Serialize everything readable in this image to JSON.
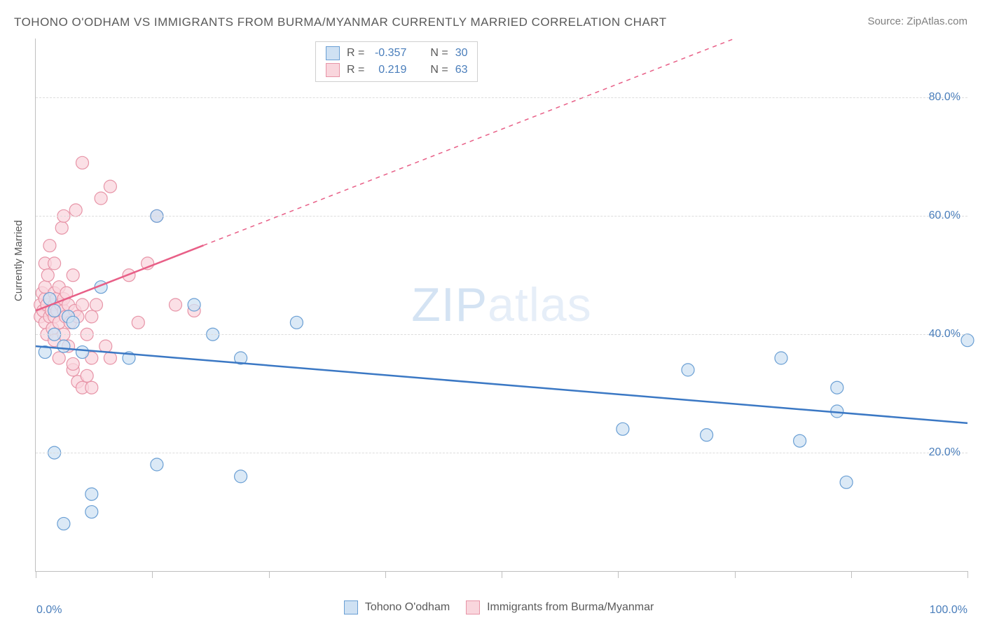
{
  "title": "TOHONO O'ODHAM VS IMMIGRANTS FROM BURMA/MYANMAR CURRENTLY MARRIED CORRELATION CHART",
  "source": "Source: ZipAtlas.com",
  "ylabel": "Currently Married",
  "watermark_bold": "ZIP",
  "watermark_thin": "atlas",
  "chart": {
    "type": "scatter",
    "xlim": [
      0,
      100
    ],
    "ylim": [
      0,
      90
    ],
    "x_axis_min_label": "0.0%",
    "x_axis_max_label": "100.0%",
    "y_ticks": [
      20,
      40,
      60,
      80
    ],
    "y_tick_labels": [
      "20.0%",
      "40.0%",
      "60.0%",
      "80.0%"
    ],
    "x_tick_positions": [
      0,
      12.5,
      25,
      37.5,
      50,
      62.5,
      75,
      87.5,
      100
    ],
    "grid_color": "#dcdcdc",
    "background_color": "#ffffff",
    "axis_color": "#bfbfbf",
    "tick_label_color": "#4a7ebb"
  },
  "series": {
    "blue": {
      "label": "Tohono O'odham",
      "point_fill": "#cfe1f3",
      "point_stroke": "#6a9fd4",
      "line_color": "#3b78c4",
      "marker_radius": 9,
      "R_value": "-0.357",
      "N_value": "30",
      "trend": {
        "x1": 0,
        "y1": 38,
        "x2": 100,
        "y2": 25,
        "dashed_from_x": null
      },
      "points": [
        [
          1,
          37
        ],
        [
          1.5,
          46
        ],
        [
          2,
          40
        ],
        [
          2,
          44
        ],
        [
          3,
          38
        ],
        [
          3.5,
          43
        ],
        [
          4,
          42
        ],
        [
          2,
          20
        ],
        [
          3,
          8
        ],
        [
          5,
          37
        ],
        [
          6,
          10
        ],
        [
          6,
          13
        ],
        [
          7,
          48
        ],
        [
          10,
          36
        ],
        [
          13,
          60
        ],
        [
          13,
          18
        ],
        [
          17,
          45
        ],
        [
          19,
          40
        ],
        [
          22,
          36
        ],
        [
          22,
          16
        ],
        [
          28,
          42
        ],
        [
          63,
          24
        ],
        [
          70,
          34
        ],
        [
          72,
          23
        ],
        [
          80,
          36
        ],
        [
          82,
          22
        ],
        [
          86,
          27
        ],
        [
          86,
          31
        ],
        [
          87,
          15
        ],
        [
          100,
          39
        ]
      ]
    },
    "pink": {
      "label": "Immigrants from Burma/Myanmar",
      "point_fill": "#f9d6dd",
      "point_stroke": "#e794a7",
      "line_color": "#e85f87",
      "marker_radius": 9,
      "R_value": "0.219",
      "N_value": "63",
      "trend": {
        "x1": 0,
        "y1": 44,
        "x2": 75,
        "y2": 90,
        "dashed_from_x": 18
      },
      "points": [
        [
          0.5,
          45
        ],
        [
          0.5,
          43
        ],
        [
          0.7,
          47
        ],
        [
          0.8,
          44
        ],
        [
          1,
          46
        ],
        [
          1,
          48
        ],
        [
          1,
          42
        ],
        [
          1,
          52
        ],
        [
          1.2,
          45
        ],
        [
          1.2,
          40
        ],
        [
          1.3,
          50
        ],
        [
          1.5,
          43
        ],
        [
          1.5,
          46
        ],
        [
          1.5,
          55
        ],
        [
          1.7,
          44
        ],
        [
          1.8,
          41
        ],
        [
          2,
          47
        ],
        [
          2,
          45
        ],
        [
          2,
          43
        ],
        [
          2,
          39
        ],
        [
          2,
          52
        ],
        [
          2.2,
          46
        ],
        [
          2.3,
          44
        ],
        [
          2.5,
          48
        ],
        [
          2.5,
          42
        ],
        [
          2.5,
          36
        ],
        [
          2.7,
          45
        ],
        [
          2.8,
          58
        ],
        [
          3,
          44
        ],
        [
          3,
          40
        ],
        [
          3,
          46
        ],
        [
          3,
          60
        ],
        [
          3.2,
          43
        ],
        [
          3.3,
          47
        ],
        [
          3.5,
          38
        ],
        [
          3.5,
          45
        ],
        [
          3.7,
          42
        ],
        [
          4,
          50
        ],
        [
          4,
          34
        ],
        [
          4,
          35
        ],
        [
          4.2,
          44
        ],
        [
          4.3,
          61
        ],
        [
          4.5,
          32
        ],
        [
          4.5,
          43
        ],
        [
          5,
          45
        ],
        [
          5,
          31
        ],
        [
          5,
          69
        ],
        [
          5.5,
          40
        ],
        [
          5.5,
          33
        ],
        [
          6,
          43
        ],
        [
          6,
          36
        ],
        [
          6,
          31
        ],
        [
          6.5,
          45
        ],
        [
          7,
          63
        ],
        [
          7.5,
          38
        ],
        [
          8,
          36
        ],
        [
          8,
          65
        ],
        [
          10,
          50
        ],
        [
          11,
          42
        ],
        [
          12,
          52
        ],
        [
          13,
          60
        ],
        [
          15,
          45
        ],
        [
          17,
          44
        ]
      ]
    }
  },
  "top_legend": {
    "r_label": "R =",
    "n_label": "N ="
  }
}
